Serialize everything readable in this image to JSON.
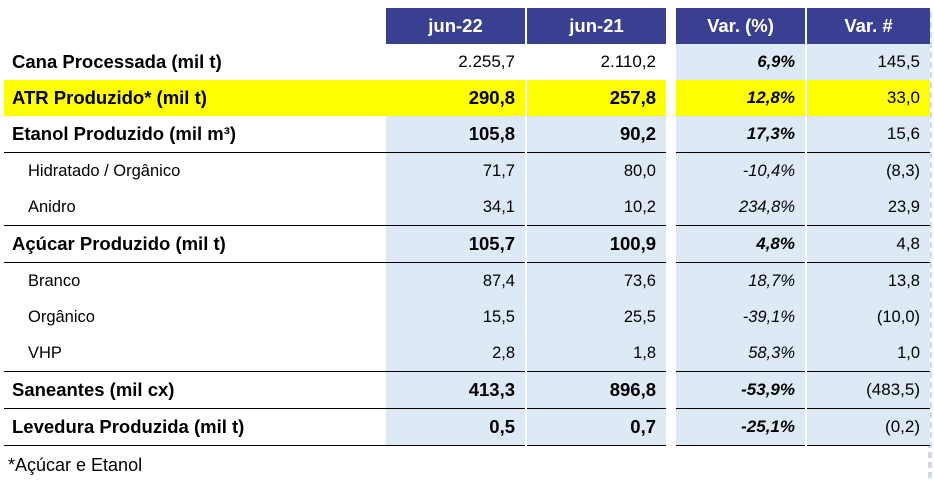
{
  "columns": {
    "jun22": "jun-22",
    "jun21": "jun-21",
    "var_pct": "Var. (%)",
    "var_abs": "Var. #"
  },
  "rows": [
    {
      "label": "Cana Processada (mil t)",
      "jun22": "2.255,7",
      "jun21": "2.110,2",
      "var_pct": "6,9%",
      "var_abs": "145,5"
    },
    {
      "label": "ATR Produzido* (mil t)",
      "jun22": "290,8",
      "jun21": "257,8",
      "var_pct": "12,8%",
      "var_abs": "33,0"
    },
    {
      "label": "Etanol Produzido (mil m³)",
      "jun22": "105,8",
      "jun21": "90,2",
      "var_pct": "17,3%",
      "var_abs": "15,6"
    },
    {
      "label": "Hidratado / Orgânico",
      "jun22": "71,7",
      "jun21": "80,0",
      "var_pct": "-10,4%",
      "var_abs": "(8,3)"
    },
    {
      "label": "Anidro",
      "jun22": "34,1",
      "jun21": "10,2",
      "var_pct": "234,8%",
      "var_abs": "23,9"
    },
    {
      "label": "Açúcar Produzido (mil t)",
      "jun22": "105,7",
      "jun21": "100,9",
      "var_pct": "4,8%",
      "var_abs": "4,8"
    },
    {
      "label": "Branco",
      "jun22": "87,4",
      "jun21": "73,6",
      "var_pct": "18,7%",
      "var_abs": "13,8"
    },
    {
      "label": "Orgânico",
      "jun22": "15,5",
      "jun21": "25,5",
      "var_pct": "-39,1%",
      "var_abs": "(10,0)"
    },
    {
      "label": "VHP",
      "jun22": "2,8",
      "jun21": "1,8",
      "var_pct": "58,3%",
      "var_abs": "1,0"
    },
    {
      "label": "Saneantes (mil cx)",
      "jun22": "413,3",
      "jun21": "896,8",
      "var_pct": "-53,9%",
      "var_abs": "(483,5)"
    },
    {
      "label": "Levedura Produzida (mil t)",
      "jun22": "0,5",
      "jun21": "0,7",
      "var_pct": "-25,1%",
      "var_abs": "(0,2)"
    }
  ],
  "footnote": "*Açúcar e Etanol",
  "colors": {
    "header_bg": "#3a3f91",
    "highlight": "#ffff00",
    "column_shade": "#dde9f5"
  }
}
